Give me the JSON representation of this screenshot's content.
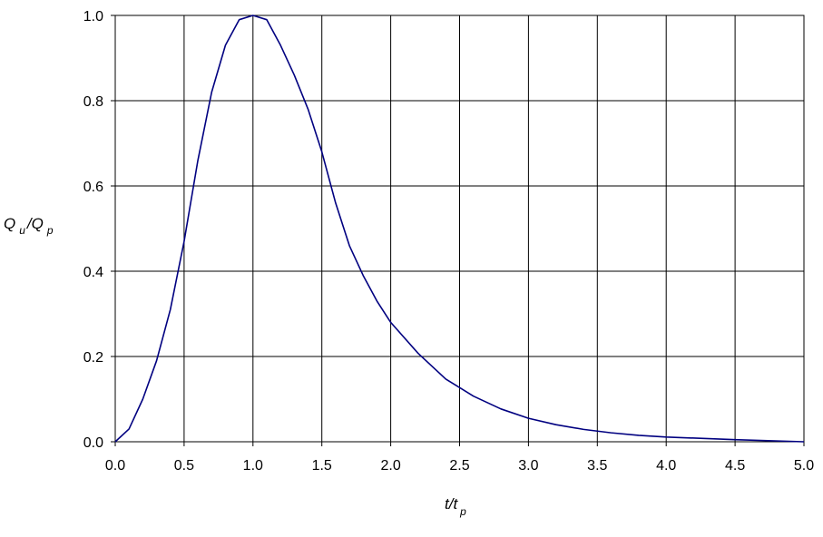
{
  "chart_data": {
    "type": "line",
    "xlabel": {
      "main": "t/t",
      "sub": "p"
    },
    "ylabel": {
      "part1": "Q",
      "sub1": "u",
      "part2": "/Q",
      "sub2": "p"
    },
    "xlim": [
      0,
      5
    ],
    "ylim": [
      0,
      1
    ],
    "xticks": [
      "0.0",
      "0.5",
      "1.0",
      "1.5",
      "2.0",
      "2.5",
      "3.0",
      "3.5",
      "4.0",
      "4.5",
      "5.0"
    ],
    "yticks": [
      "0.0",
      "0.2",
      "0.4",
      "0.6",
      "0.8",
      "1.0"
    ],
    "grid": true,
    "line_color": "#000080",
    "grid_color": "#000000",
    "series": [
      {
        "x": [
          0.0,
          0.1,
          0.2,
          0.3,
          0.4,
          0.5,
          0.6,
          0.7,
          0.8,
          0.9,
          1.0,
          1.1,
          1.2,
          1.3,
          1.4,
          1.5,
          1.6,
          1.7,
          1.8,
          1.9,
          2.0,
          2.2,
          2.4,
          2.6,
          2.8,
          3.0,
          3.2,
          3.4,
          3.6,
          3.8,
          4.0,
          4.5,
          5.0
        ],
        "y": [
          0.0,
          0.03,
          0.1,
          0.19,
          0.31,
          0.47,
          0.66,
          0.82,
          0.93,
          0.99,
          1.0,
          0.99,
          0.93,
          0.86,
          0.78,
          0.68,
          0.56,
          0.46,
          0.39,
          0.33,
          0.28,
          0.207,
          0.147,
          0.107,
          0.077,
          0.055,
          0.04,
          0.029,
          0.021,
          0.015,
          0.011,
          0.005,
          0.0
        ]
      }
    ]
  }
}
